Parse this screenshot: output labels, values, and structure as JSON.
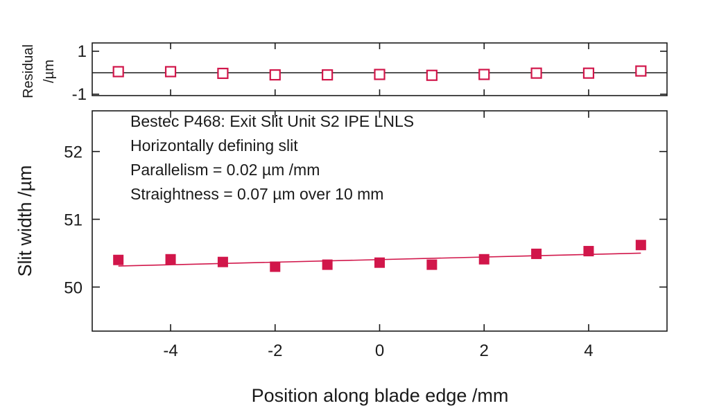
{
  "chart_data": [
    {
      "type": "scatter",
      "panel": "residual",
      "ylabel": "Residual /µm",
      "ylabel_lines": [
        "Residual",
        "/µm"
      ],
      "ylim": [
        -1,
        1
      ],
      "xlim": [
        -5.5,
        5.5
      ],
      "ytick_labels": [
        "1",
        "-1"
      ],
      "ytick_values": [
        1,
        -1
      ],
      "zero_line": true,
      "marker": "open-square",
      "color": "#d1164a",
      "x": [
        -5,
        -4,
        -3,
        -2,
        -1,
        0,
        1,
        2,
        3,
        4,
        5
      ],
      "y": [
        0.05,
        0.05,
        -0.03,
        -0.1,
        -0.1,
        -0.08,
        -0.12,
        -0.08,
        -0.02,
        -0.02,
        0.08
      ]
    },
    {
      "type": "scatter",
      "panel": "main",
      "xlabel": "Position along blade edge /mm",
      "ylabel": "Slit width /µm",
      "xlim": [
        -5.5,
        5.5
      ],
      "ylim": [
        49.35,
        52.6
      ],
      "xtick_values": [
        -4,
        -2,
        0,
        2,
        4
      ],
      "xtick_labels": [
        "-4",
        "-2",
        "0",
        "2",
        "4"
      ],
      "ytick_values": [
        50,
        51,
        52
      ],
      "ytick_labels": [
        "50",
        "51",
        "52"
      ],
      "marker": "filled-square",
      "color": "#d1164a",
      "x": [
        -5,
        -4,
        -3,
        -2,
        -1,
        0,
        1,
        2,
        3,
        4,
        5
      ],
      "y": [
        50.4,
        50.41,
        50.37,
        50.3,
        50.33,
        50.36,
        50.33,
        50.41,
        50.49,
        50.53,
        50.62
      ],
      "fit_line": {
        "x": [
          -5,
          5
        ],
        "y": [
          50.31,
          50.5
        ]
      },
      "annotations": [
        "Bestec P468: Exit Slit Unit S2 IPE LNLS",
        "Horizontally defining slit",
        "Parallelism = 0.02 µm /mm",
        "Straightness = 0.07 µm over 10 mm"
      ]
    }
  ]
}
